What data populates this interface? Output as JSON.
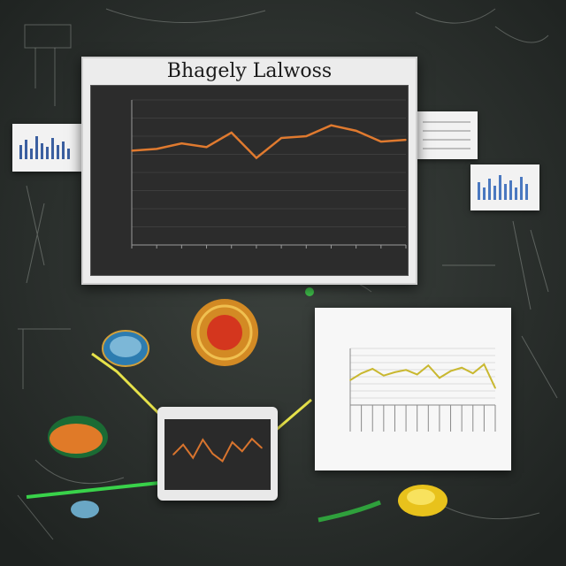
{
  "main_monitor": {
    "title": "Bhagely Lalwoss"
  },
  "right_document": {},
  "tablet": {},
  "chart_data": [
    {
      "type": "line",
      "title": "",
      "xlabel": "",
      "ylabel": "",
      "x": [
        1,
        2,
        3,
        4,
        5,
        6,
        7,
        8,
        9,
        10,
        11,
        12
      ],
      "series": [
        {
          "values": [
            5.2,
            5.3,
            5.6,
            5.4,
            6.2,
            4.8,
            5.9,
            6.0,
            6.6,
            6.3,
            5.7,
            5.8
          ]
        }
      ],
      "ylim": [
        0,
        8
      ],
      "grid": true
    },
    {
      "type": "line",
      "title": "",
      "xlabel": "",
      "ylabel": "",
      "x": [
        1,
        2,
        3,
        4,
        5,
        6,
        7,
        8,
        9,
        10,
        11,
        12,
        13,
        14
      ],
      "series": [
        {
          "values": [
            2.2,
            2.8,
            3.2,
            2.6,
            2.9,
            3.1,
            2.7,
            3.5,
            2.4,
            3.0,
            3.3,
            2.8,
            3.6,
            1.5
          ]
        }
      ],
      "ylim": [
        0,
        5
      ],
      "grid": true
    },
    {
      "type": "line",
      "title": "",
      "x": [
        1,
        2,
        3,
        4,
        5,
        6,
        7,
        8,
        9,
        10
      ],
      "series": [
        {
          "values": [
            3.0,
            4.2,
            2.6,
            4.8,
            3.1,
            2.2,
            4.5,
            3.4,
            4.9,
            3.8
          ]
        }
      ],
      "ylim": [
        0,
        6
      ],
      "grid": false
    }
  ],
  "colors": {
    "chalkboard": "#2f3431",
    "main_line": "#e07a2f",
    "doc_line": "#c9b830",
    "tablet_line": "#d8742e",
    "connector": "#e6e24a",
    "green_stroke": "#39d24a"
  }
}
